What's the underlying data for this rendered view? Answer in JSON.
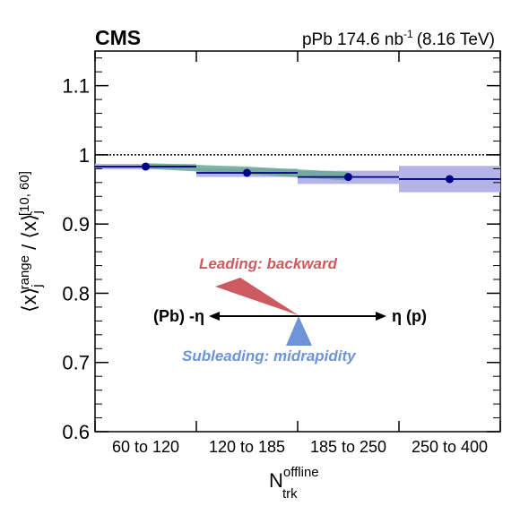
{
  "header": {
    "experiment": "CMS",
    "dataset_prefix": "pPb 174.6 nb",
    "dataset_exp": "-1",
    "energy": "(8.16 TeV)"
  },
  "axes": {
    "xlabel_main": "N",
    "xlabel_sub": "trk",
    "xlabel_sup": "offline",
    "ylabel": "⟨x⟩j range / ⟨x⟩j [10, 60]"
  },
  "annotation": {
    "leading_label": "Leading: backward",
    "subleading_label": "Subleading: midrapidity",
    "pb_label": "(Pb) -η",
    "p_label": "η (p)"
  },
  "colors": {
    "data": "#00008b",
    "band_blue": "#b4b4e6",
    "band_green": "#6aa890",
    "leading_triangle": "#cc5a5f",
    "subleading_triangle": "#6e93d6",
    "reference_line": "#000000"
  },
  "chart_data": {
    "type": "scatter",
    "categories": [
      "60 to 120",
      "120 to 185",
      "185 to 250",
      "250 to 400"
    ],
    "ylim": [
      0.6,
      1.15
    ],
    "yticks": [
      0.6,
      0.7,
      0.8,
      0.9,
      1.0,
      1.1
    ],
    "ytick_labels": [
      "0.6",
      "0.7",
      "0.8",
      "0.9",
      "1",
      "1.1"
    ],
    "reference_line": 1.0,
    "series": [
      {
        "values": [
          0.983,
          0.974,
          0.968,
          0.965
        ],
        "syst_low": [
          0.979,
          0.968,
          0.958,
          0.946
        ],
        "syst_high": [
          0.987,
          0.98,
          0.977,
          0.984
        ]
      }
    ],
    "model_band": {
      "low": [
        0.98,
        0.972,
        0.963
      ],
      "high": [
        0.988,
        0.983,
        0.975
      ]
    },
    "grid": false
  }
}
